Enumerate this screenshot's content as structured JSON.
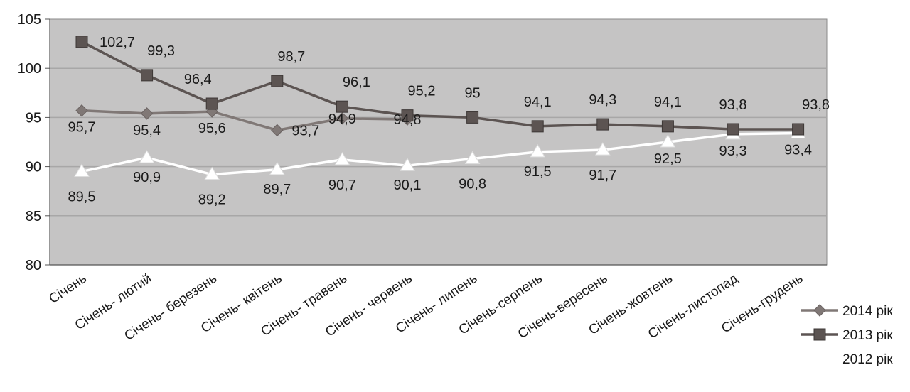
{
  "chart_data": {
    "type": "line",
    "categories": [
      "Січень",
      "Січень- лютий",
      "Січень- березень",
      "Січень- квітень",
      "Січень- травень",
      "Січень- червень",
      "Січень- липень",
      "Січень-серпень",
      "Січень-вересень",
      "Січень-жовтень",
      "Січень-листопад",
      "Січень-грудень"
    ],
    "series": [
      {
        "name": "2014 рік",
        "marker": "diamond",
        "color": "#807876",
        "values": [
          95.7,
          95.4,
          95.6,
          93.7,
          94.9,
          94.8,
          null,
          null,
          null,
          null,
          null,
          null
        ],
        "labels": [
          "95,7",
          "95,4",
          "95,6",
          "93,7",
          "94,9",
          "94,8",
          "",
          "",
          "",
          "",
          "",
          ""
        ]
      },
      {
        "name": "2013 рік",
        "marker": "square",
        "color": "#5c5452",
        "values": [
          102.7,
          99.3,
          96.4,
          98.7,
          96.1,
          95.2,
          95,
          94.1,
          94.3,
          94.1,
          93.8,
          93.8
        ],
        "labels": [
          "102,7",
          "99,3",
          "96,4",
          "98,7",
          "96,1",
          "95,2",
          "95",
          "94,1",
          "94,3",
          "94,1",
          "93,8",
          "93,8"
        ]
      },
      {
        "name": "2012 рік",
        "marker": "triangle",
        "color": "#ffffff",
        "values": [
          89.5,
          90.9,
          89.2,
          89.7,
          90.7,
          90.1,
          90.8,
          91.5,
          91.7,
          92.5,
          93.3,
          93.4
        ],
        "labels": [
          "89,5",
          "90,9",
          "89,2",
          "89,7",
          "90,7",
          "90,1",
          "90,8",
          "91,5",
          "91,7",
          "92,5",
          "93,3",
          "93,4"
        ]
      }
    ],
    "yticks": [
      "80",
      "85",
      "90",
      "95",
      "100",
      "105"
    ],
    "ylim": [
      80,
      105
    ],
    "grid": true,
    "legend_position": "bottom-right",
    "plot_background": "#c5c4c4",
    "gridline_color": "#a8a7a7"
  }
}
